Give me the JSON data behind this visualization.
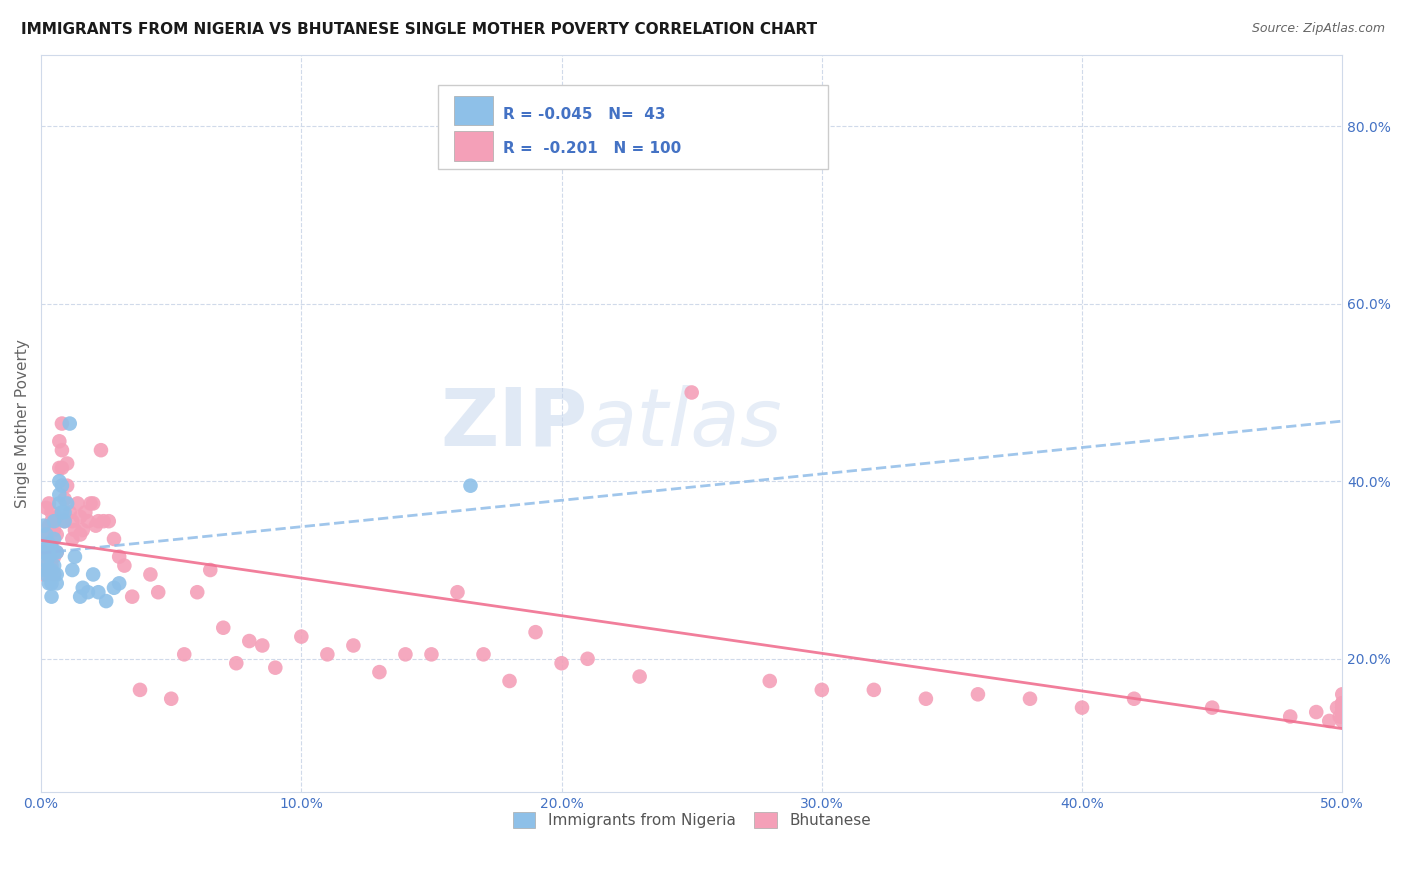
{
  "title": "IMMIGRANTS FROM NIGERIA VS BHUTANESE SINGLE MOTHER POVERTY CORRELATION CHART",
  "source": "Source: ZipAtlas.com",
  "ylabel": "Single Mother Poverty",
  "legend_nigeria": "Immigrants from Nigeria",
  "legend_bhutanese": "Bhutanese",
  "r_nigeria": "-0.045",
  "n_nigeria": "43",
  "r_bhutanese": "-0.201",
  "n_bhutanese": "100",
  "color_nigeria": "#8ec0e8",
  "color_bhutanese": "#f4a0b8",
  "color_nigeria_line": "#90bce8",
  "color_bhutanese_line": "#f07090",
  "color_text_blue": "#4472c4",
  "watermark_zip": "ZIP",
  "watermark_atlas": "atlas",
  "bg_color": "#ffffff",
  "grid_color": "#d0daea",
  "nigeria_x": [
    0.001,
    0.001,
    0.001,
    0.002,
    0.002,
    0.002,
    0.002,
    0.003,
    0.003,
    0.003,
    0.003,
    0.004,
    0.004,
    0.004,
    0.004,
    0.005,
    0.005,
    0.005,
    0.005,
    0.005,
    0.006,
    0.006,
    0.006,
    0.007,
    0.007,
    0.007,
    0.008,
    0.008,
    0.009,
    0.009,
    0.01,
    0.011,
    0.012,
    0.013,
    0.015,
    0.016,
    0.018,
    0.02,
    0.022,
    0.025,
    0.028,
    0.03,
    0.165
  ],
  "nigeria_y": [
    0.3,
    0.32,
    0.35,
    0.295,
    0.31,
    0.325,
    0.34,
    0.285,
    0.3,
    0.315,
    0.33,
    0.27,
    0.285,
    0.3,
    0.325,
    0.295,
    0.305,
    0.32,
    0.335,
    0.355,
    0.285,
    0.295,
    0.32,
    0.375,
    0.385,
    0.4,
    0.395,
    0.365,
    0.355,
    0.365,
    0.375,
    0.465,
    0.3,
    0.315,
    0.27,
    0.28,
    0.275,
    0.295,
    0.275,
    0.265,
    0.28,
    0.285,
    0.395
  ],
  "bhutanese_x": [
    0.001,
    0.001,
    0.002,
    0.002,
    0.002,
    0.003,
    0.003,
    0.003,
    0.004,
    0.004,
    0.004,
    0.004,
    0.005,
    0.005,
    0.005,
    0.006,
    0.006,
    0.006,
    0.007,
    0.007,
    0.008,
    0.008,
    0.008,
    0.009,
    0.009,
    0.01,
    0.01,
    0.011,
    0.012,
    0.012,
    0.013,
    0.014,
    0.015,
    0.015,
    0.016,
    0.017,
    0.018,
    0.019,
    0.02,
    0.021,
    0.022,
    0.023,
    0.024,
    0.026,
    0.028,
    0.03,
    0.032,
    0.035,
    0.038,
    0.042,
    0.045,
    0.05,
    0.055,
    0.06,
    0.065,
    0.07,
    0.075,
    0.08,
    0.085,
    0.09,
    0.1,
    0.11,
    0.12,
    0.13,
    0.14,
    0.15,
    0.16,
    0.17,
    0.18,
    0.19,
    0.2,
    0.21,
    0.23,
    0.25,
    0.28,
    0.3,
    0.32,
    0.34,
    0.36,
    0.38,
    0.4,
    0.42,
    0.45,
    0.48,
    0.49,
    0.495,
    0.498,
    0.499,
    0.5,
    0.5,
    0.5,
    0.5,
    0.5,
    0.5,
    0.5,
    0.5,
    0.5,
    0.5,
    0.5,
    0.5
  ],
  "bhutanese_y": [
    0.295,
    0.32,
    0.305,
    0.34,
    0.37,
    0.315,
    0.35,
    0.375,
    0.305,
    0.32,
    0.355,
    0.365,
    0.295,
    0.315,
    0.345,
    0.32,
    0.34,
    0.36,
    0.415,
    0.445,
    0.415,
    0.435,
    0.465,
    0.355,
    0.38,
    0.395,
    0.42,
    0.365,
    0.335,
    0.355,
    0.345,
    0.375,
    0.36,
    0.34,
    0.345,
    0.365,
    0.355,
    0.375,
    0.375,
    0.35,
    0.355,
    0.435,
    0.355,
    0.355,
    0.335,
    0.315,
    0.305,
    0.27,
    0.165,
    0.295,
    0.275,
    0.155,
    0.205,
    0.275,
    0.3,
    0.235,
    0.195,
    0.22,
    0.215,
    0.19,
    0.225,
    0.205,
    0.215,
    0.185,
    0.205,
    0.205,
    0.275,
    0.205,
    0.175,
    0.23,
    0.195,
    0.2,
    0.18,
    0.5,
    0.175,
    0.165,
    0.165,
    0.155,
    0.16,
    0.155,
    0.145,
    0.155,
    0.145,
    0.135,
    0.14,
    0.13,
    0.145,
    0.135,
    0.135,
    0.135,
    0.15,
    0.14,
    0.14,
    0.15,
    0.145,
    0.14,
    0.16,
    0.14,
    0.145,
    0.13
  ],
  "x_ticks": [
    0.0,
    0.1,
    0.2,
    0.3,
    0.4,
    0.5
  ],
  "x_labels": [
    "0.0%",
    "10.0%",
    "20.0%",
    "30.0%",
    "40.0%",
    "50.0%"
  ],
  "y_ticks": [
    0.2,
    0.4,
    0.6,
    0.8
  ],
  "y_labels": [
    "20.0%",
    "40.0%",
    "60.0%",
    "80.0%"
  ],
  "xlim": [
    0.0,
    0.5
  ],
  "ylim": [
    0.05,
    0.88
  ]
}
